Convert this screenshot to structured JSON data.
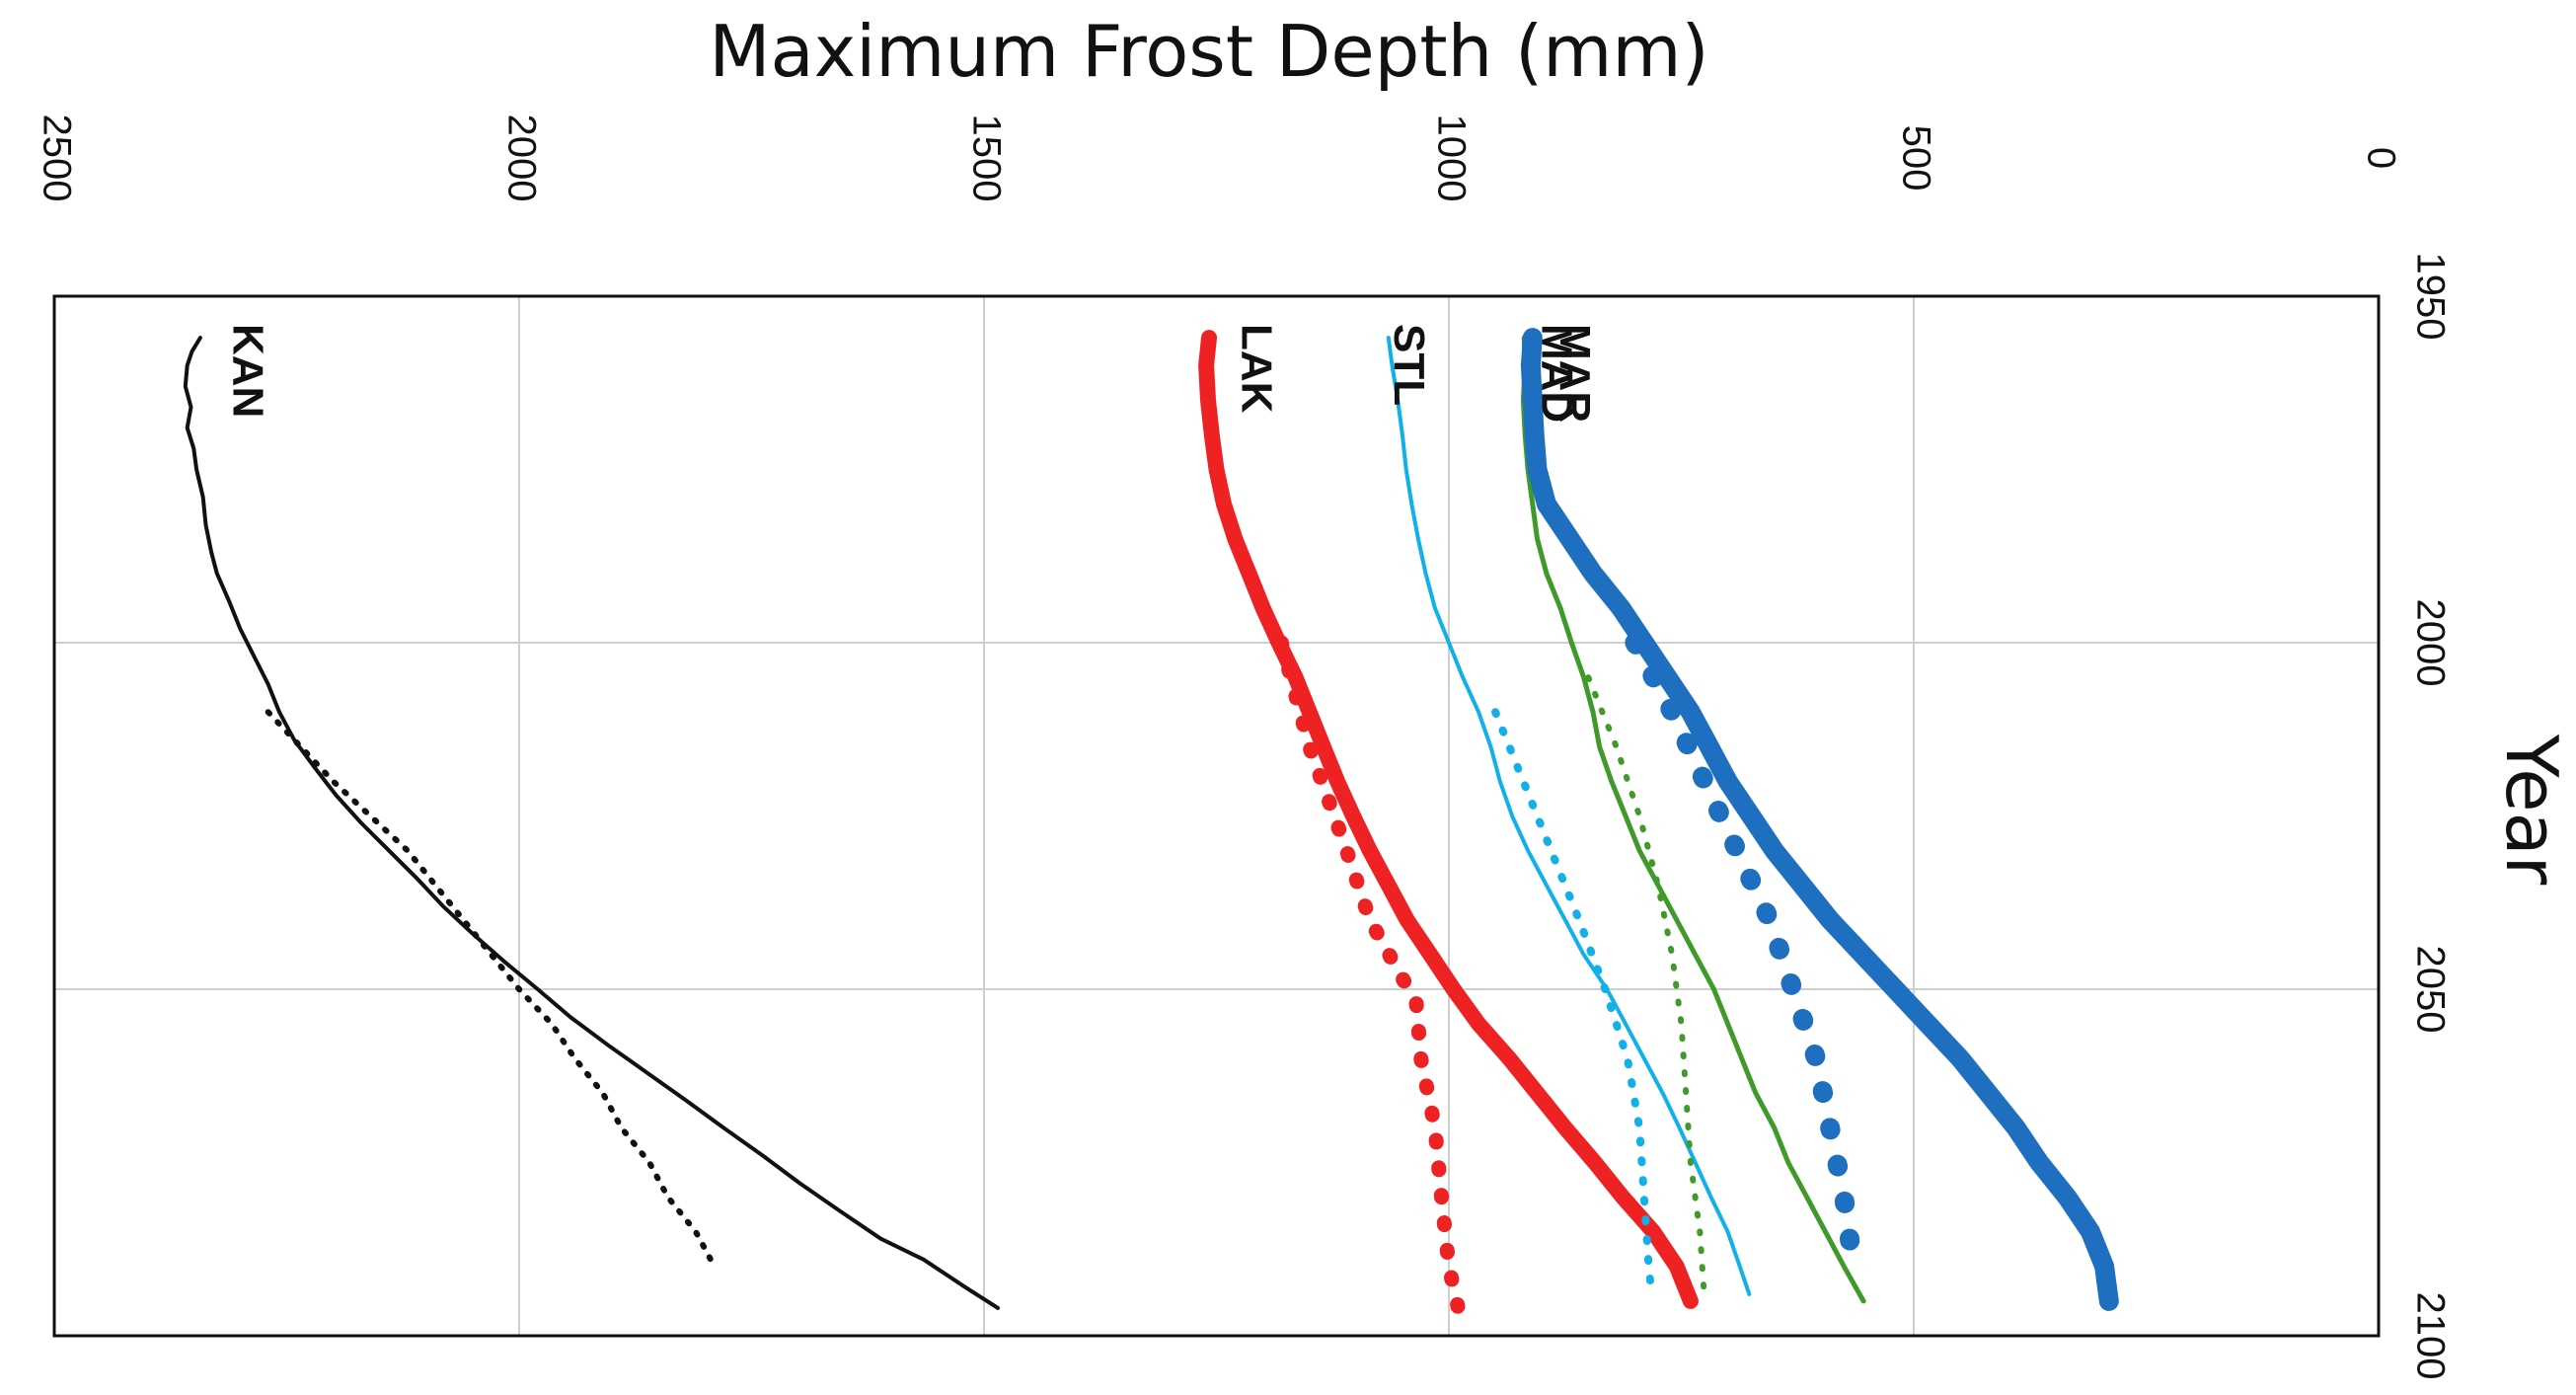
{
  "chart_data": {
    "type": "line",
    "title": "",
    "xlabel": "Maximum Frost Depth (mm)",
    "ylabel": "Year",
    "x_axis_reversed": true,
    "xlim": [
      0,
      2500
    ],
    "ylim": [
      1950,
      2100
    ],
    "x_ticks": [
      "0",
      "500",
      "1000",
      "1500",
      "2000",
      "2500"
    ],
    "y_ticks": [
      "1950",
      "2000",
      "2050",
      "2100"
    ],
    "grid": true,
    "series": [
      {
        "name": "KAN",
        "color": "#111111",
        "points": [
          [
            2343,
            1956
          ],
          [
            2352,
            1958
          ],
          [
            2357,
            1960
          ],
          [
            2359,
            1963
          ],
          [
            2353,
            1966
          ],
          [
            2357,
            1969
          ],
          [
            2350,
            1972
          ],
          [
            2347,
            1975
          ],
          [
            2340,
            1979
          ],
          [
            2337,
            1983
          ],
          [
            2331,
            1987
          ],
          [
            2325,
            1990
          ],
          [
            2312,
            1994
          ],
          [
            2300,
            1998
          ],
          [
            2285,
            2002
          ],
          [
            2270,
            2006
          ],
          [
            2258,
            2010
          ],
          [
            2242,
            2014
          ],
          [
            2220,
            2018
          ],
          [
            2197,
            2022
          ],
          [
            2170,
            2026
          ],
          [
            2140,
            2030
          ],
          [
            2110,
            2034
          ],
          [
            2082,
            2038
          ],
          [
            2050,
            2042
          ],
          [
            2016,
            2046
          ],
          [
            1980,
            2050
          ],
          [
            1945,
            2054
          ],
          [
            1905,
            2058
          ],
          [
            1863,
            2062
          ],
          [
            1821,
            2066
          ],
          [
            1780,
            2070
          ],
          [
            1738,
            2074
          ],
          [
            1698,
            2078
          ],
          [
            1655,
            2082
          ],
          [
            1611,
            2086
          ],
          [
            1565,
            2089
          ],
          [
            1520,
            2093
          ],
          [
            1485,
            2096
          ]
        ]
      },
      {
        "name": "KAN",
        "color": "#111111",
        "points": [
          [
            2270,
            2010
          ],
          [
            2235,
            2015
          ],
          [
            2200,
            2020
          ],
          [
            2160,
            2025
          ],
          [
            2120,
            2030
          ],
          [
            2090,
            2035
          ],
          [
            2060,
            2040
          ],
          [
            2030,
            2045
          ],
          [
            2000,
            2050
          ],
          [
            1965,
            2055
          ],
          [
            1940,
            2060
          ],
          [
            1910,
            2065
          ],
          [
            1890,
            2070
          ],
          [
            1860,
            2075
          ],
          [
            1840,
            2080
          ],
          [
            1810,
            2085
          ],
          [
            1790,
            2090
          ]
        ]
      },
      {
        "name": "LAK",
        "color": "#ee2222",
        "points": [
          [
            1258,
            1956
          ],
          [
            1261,
            1960
          ],
          [
            1259,
            1965
          ],
          [
            1255,
            1970
          ],
          [
            1250,
            1975
          ],
          [
            1242,
            1980
          ],
          [
            1230,
            1985
          ],
          [
            1215,
            1990
          ],
          [
            1200,
            1995
          ],
          [
            1183,
            2000
          ],
          [
            1165,
            2005
          ],
          [
            1150,
            2010
          ],
          [
            1135,
            2015
          ],
          [
            1120,
            2020
          ],
          [
            1103,
            2025
          ],
          [
            1085,
            2030
          ],
          [
            1065,
            2035
          ],
          [
            1045,
            2040
          ],
          [
            1020,
            2045
          ],
          [
            995,
            2050
          ],
          [
            968,
            2055
          ],
          [
            935,
            2060
          ],
          [
            905,
            2065
          ],
          [
            875,
            2070
          ],
          [
            843,
            2075
          ],
          [
            813,
            2080
          ],
          [
            780,
            2085
          ],
          [
            755,
            2090
          ],
          [
            740,
            2095
          ]
        ]
      },
      {
        "name": "LAK",
        "color": "#ee2222",
        "points": [
          [
            1180,
            2000
          ],
          [
            1150,
            2015
          ],
          [
            1110,
            2030
          ],
          [
            1085,
            2040
          ],
          [
            1035,
            2052
          ],
          [
            1030,
            2060
          ],
          [
            1015,
            2070
          ],
          [
            1008,
            2080
          ],
          [
            1000,
            2090
          ],
          [
            990,
            2096
          ]
        ]
      },
      {
        "name": "STL",
        "color": "#12b0e8",
        "points": [
          [
            1065,
            1956
          ],
          [
            1061,
            1960
          ],
          [
            1055,
            1965
          ],
          [
            1050,
            1970
          ],
          [
            1046,
            1975
          ],
          [
            1040,
            1980
          ],
          [
            1033,
            1985
          ],
          [
            1025,
            1990
          ],
          [
            1015,
            1995
          ],
          [
            1000,
            2000
          ],
          [
            985,
            2005
          ],
          [
            968,
            2010
          ],
          [
            955,
            2015
          ],
          [
            945,
            2020
          ],
          [
            932,
            2025
          ],
          [
            915,
            2030
          ],
          [
            895,
            2035
          ],
          [
            875,
            2040
          ],
          [
            855,
            2045
          ],
          [
            830,
            2050
          ],
          [
            810,
            2055
          ],
          [
            790,
            2060
          ],
          [
            770,
            2065
          ],
          [
            752,
            2070
          ],
          [
            735,
            2075
          ],
          [
            718,
            2080
          ],
          [
            700,
            2085
          ],
          [
            687,
            2090
          ],
          [
            677,
            2094
          ]
        ]
      },
      {
        "name": "STL",
        "color": "#12b0e8",
        "points": [
          [
            950,
            2010
          ],
          [
            920,
            2020
          ],
          [
            890,
            2030
          ],
          [
            860,
            2040
          ],
          [
            832,
            2050
          ],
          [
            808,
            2060
          ],
          [
            795,
            2070
          ],
          [
            790,
            2080
          ],
          [
            785,
            2090
          ],
          [
            782,
            2094
          ]
        ]
      },
      {
        "name": "MAD",
        "color": "#3f9a2a",
        "points": [
          [
            919,
            1956
          ],
          [
            918,
            1960
          ],
          [
            920,
            1965
          ],
          [
            918,
            1970
          ],
          [
            915,
            1975
          ],
          [
            910,
            1980
          ],
          [
            905,
            1985
          ],
          [
            895,
            1990
          ],
          [
            880,
            1995
          ],
          [
            868,
            2000
          ],
          [
            855,
            2005
          ],
          [
            845,
            2010
          ],
          [
            838,
            2015
          ],
          [
            825,
            2020
          ],
          [
            810,
            2025
          ],
          [
            795,
            2030
          ],
          [
            775,
            2035
          ],
          [
            755,
            2040
          ],
          [
            735,
            2045
          ],
          [
            715,
            2050
          ],
          [
            700,
            2055
          ],
          [
            685,
            2060
          ],
          [
            670,
            2065
          ],
          [
            650,
            2070
          ],
          [
            635,
            2075
          ],
          [
            615,
            2080
          ],
          [
            595,
            2085
          ],
          [
            575,
            2090
          ],
          [
            554,
            2095
          ]
        ]
      },
      {
        "name": "MAD",
        "color": "#3f9a2a",
        "points": [
          [
            850,
            2005
          ],
          [
            820,
            2015
          ],
          [
            795,
            2025
          ],
          [
            775,
            2035
          ],
          [
            760,
            2045
          ],
          [
            750,
            2055
          ],
          [
            745,
            2065
          ],
          [
            740,
            2075
          ],
          [
            730,
            2085
          ],
          [
            725,
            2095
          ]
        ]
      },
      {
        "name": "MAR",
        "color": "#1f6fc0",
        "points": [
          [
            910,
            1956
          ],
          [
            912,
            1960
          ],
          [
            910,
            1965
          ],
          [
            908,
            1970
          ],
          [
            905,
            1975
          ],
          [
            895,
            1980
          ],
          [
            870,
            1985
          ],
          [
            845,
            1990
          ],
          [
            815,
            1995
          ],
          [
            790,
            2000
          ],
          [
            765,
            2005
          ],
          [
            740,
            2010
          ],
          [
            720,
            2015
          ],
          [
            700,
            2020
          ],
          [
            675,
            2025
          ],
          [
            650,
            2030
          ],
          [
            620,
            2035
          ],
          [
            590,
            2040
          ],
          [
            555,
            2045
          ],
          [
            520,
            2050
          ],
          [
            485,
            2055
          ],
          [
            450,
            2060
          ],
          [
            420,
            2065
          ],
          [
            390,
            2070
          ],
          [
            365,
            2075
          ],
          [
            335,
            2080
          ],
          [
            310,
            2085
          ],
          [
            295,
            2090
          ],
          [
            290,
            2095
          ]
        ]
      },
      {
        "name": "MAR",
        "color": "#1f6fc0",
        "points": [
          [
            800,
            2000
          ],
          [
            760,
            2010
          ],
          [
            725,
            2020
          ],
          [
            690,
            2030
          ],
          [
            655,
            2040
          ],
          [
            630,
            2050
          ],
          [
            605,
            2060
          ],
          [
            590,
            2070
          ],
          [
            575,
            2080
          ],
          [
            565,
            2090
          ]
        ]
      }
    ]
  }
}
